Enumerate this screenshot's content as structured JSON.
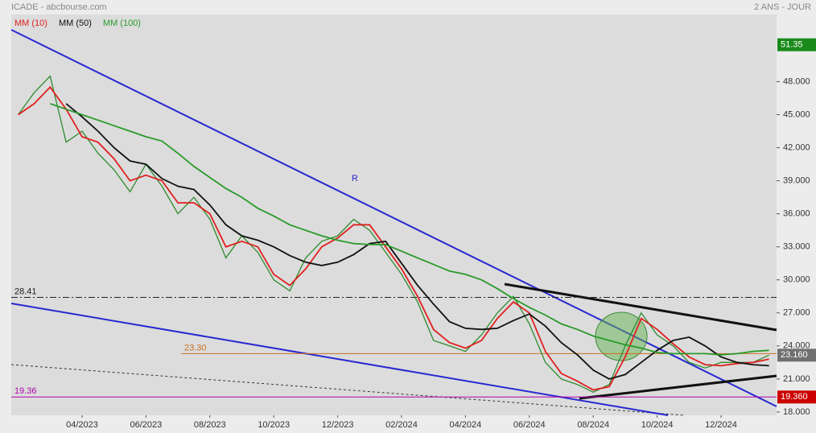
{
  "chart_data": {
    "type": "line",
    "title": "ICADE - abcbourse.com",
    "subtitle": "2 ANS - JOUR",
    "annotation": "R",
    "categories": [
      null,
      null,
      null,
      null,
      "04/2023",
      null,
      null,
      null,
      "06/2023",
      null,
      null,
      null,
      "08/2023",
      null,
      null,
      null,
      "10/2023",
      null,
      null,
      null,
      "12/2023",
      null,
      null,
      null,
      "02/2024",
      null,
      null,
      null,
      "04/2024",
      null,
      null,
      null,
      "06/2024",
      null,
      null,
      null,
      "08/2024",
      null,
      null,
      null,
      "10/2024",
      null,
      null,
      null,
      "12/2024",
      null,
      null,
      null
    ],
    "series": [
      {
        "color": "#2e8b2e",
        "values": [
          45.0,
          47.0,
          48.5,
          42.5,
          43.5,
          41.5,
          40.0,
          38.0,
          40.5,
          38.5,
          36.0,
          37.5,
          35.5,
          32.0,
          34.0,
          32.5,
          30.0,
          29.0,
          32.0,
          33.5,
          34.0,
          35.5,
          34.5,
          32.5,
          30.5,
          28.0,
          24.5,
          24.0,
          23.5,
          25.0,
          27.0,
          28.5,
          26.0,
          22.5,
          21.0,
          20.5,
          19.8,
          20.5,
          24.0,
          27.0,
          25.0,
          24.0,
          22.5,
          22.0,
          22.5,
          22.5,
          22.5,
          23.16
        ]
      },
      {
        "name": "MM (10)",
        "color": "#e02020",
        "values": [
          45.0,
          46.0,
          47.5,
          45.5,
          43.0,
          42.5,
          41.0,
          39.0,
          39.5,
          39.0,
          37.0,
          37.0,
          36.0,
          33.0,
          33.5,
          33.0,
          30.5,
          29.5,
          31.0,
          33.0,
          33.8,
          35.0,
          35.0,
          33.0,
          31.0,
          28.5,
          25.5,
          24.3,
          23.8,
          24.5,
          26.5,
          28.0,
          27.0,
          23.5,
          21.5,
          20.8,
          20.0,
          20.3,
          23.0,
          26.5,
          25.5,
          24.2,
          23.0,
          22.3,
          22.2,
          22.4,
          22.5,
          22.8
        ]
      },
      {
        "name": "MM (50)",
        "color": "#111111",
        "values": [
          null,
          null,
          null,
          46.0,
          44.8,
          43.5,
          42.0,
          40.8,
          40.5,
          39.2,
          38.5,
          38.2,
          36.8,
          35.0,
          34.0,
          33.6,
          33.0,
          32.2,
          31.6,
          31.3,
          31.6,
          32.3,
          33.3,
          33.5,
          31.5,
          29.5,
          27.8,
          26.2,
          25.6,
          25.5,
          25.6,
          26.3,
          26.9,
          25.8,
          24.3,
          23.2,
          21.8,
          21.0,
          21.4,
          22.5,
          23.6,
          24.5,
          24.8,
          24.0,
          23.0,
          22.5,
          22.3,
          22.2
        ]
      },
      {
        "name": "MM (100)",
        "color": "#2a9a2a",
        "values": [
          null,
          null,
          46.0,
          45.5,
          45.0,
          44.5,
          44.0,
          43.5,
          43.0,
          42.6,
          41.5,
          40.3,
          39.3,
          38.3,
          37.5,
          36.5,
          35.8,
          35.0,
          34.5,
          34.0,
          33.6,
          33.3,
          33.2,
          33.2,
          32.6,
          32.0,
          31.4,
          30.8,
          30.5,
          30.0,
          29.2,
          28.3,
          27.5,
          26.8,
          26.0,
          25.5,
          24.9,
          24.5,
          24.1,
          23.8,
          23.4,
          23.3,
          23.3,
          23.3,
          23.2,
          23.3,
          23.5,
          23.6
        ]
      }
    ],
    "ylim": [
      17.7,
      54.1
    ],
    "yticks": [
      {
        "value": 18,
        "label": "18.000"
      },
      {
        "value": 21,
        "label": "21.000"
      },
      {
        "value": 24,
        "label": "24.000"
      },
      {
        "value": 27,
        "label": "27.000"
      },
      {
        "value": 30,
        "label": "30.000"
      },
      {
        "value": 33,
        "label": "33.000"
      },
      {
        "value": 36,
        "label": "36.000"
      },
      {
        "value": 39,
        "label": "39.000"
      },
      {
        "value": 42,
        "label": "42.000"
      },
      {
        "value": 45,
        "label": "45.000"
      },
      {
        "value": 48,
        "label": "48.000"
      }
    ],
    "hlines": [
      {
        "value": 28.41,
        "color": "#222222",
        "dash": "8 3 2 3",
        "full": true
      },
      {
        "value": 23.3,
        "label": "23.30",
        "color": "#c87020",
        "dash": "",
        "full": false
      },
      {
        "value": 19.36,
        "color": "#b000b0",
        "dash": "",
        "full": true
      }
    ],
    "price_labels": [
      {
        "value": 51.35,
        "color": "#1a8a1a"
      },
      {
        "value": 23.16,
        "label": "23.160",
        "color": "#707070"
      },
      {
        "value": 19.36,
        "label": "19.360",
        "color": "#cc0000"
      }
    ]
  }
}
